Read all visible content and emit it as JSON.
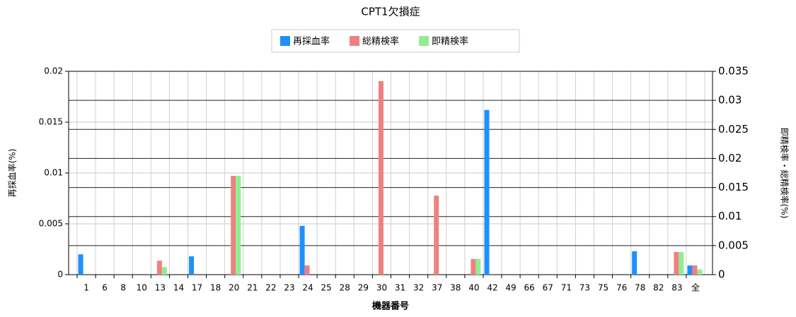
{
  "chart_data": {
    "type": "bar",
    "title": "CPT1欠損症",
    "xlabel": "機器番号",
    "ylabel": "再採血率(%)",
    "y2label": "即精検率・総精検率(%)",
    "categories": [
      "1",
      "6",
      "8",
      "10",
      "13",
      "14",
      "17",
      "18",
      "20",
      "21",
      "22",
      "23",
      "24",
      "25",
      "28",
      "29",
      "30",
      "31",
      "32",
      "37",
      "38",
      "40",
      "42",
      "49",
      "66",
      "67",
      "71",
      "73",
      "75",
      "76",
      "78",
      "82",
      "83",
      "全"
    ],
    "series": [
      {
        "name": "再採血率",
        "color": "#1e90ff",
        "axis": "y",
        "values": [
          0.002,
          0,
          0,
          0,
          0,
          0,
          0.0018,
          0,
          0,
          0,
          0,
          0,
          0.0048,
          0,
          0,
          0,
          0,
          0,
          0,
          0,
          0,
          0,
          0.0162,
          0,
          0,
          0,
          0,
          0,
          0,
          0,
          0.0023,
          0,
          0,
          0.0009
        ]
      },
      {
        "name": "総精検率",
        "color": "#f08080",
        "axis": "y2",
        "values": [
          0,
          0,
          0,
          0,
          0.0024,
          0,
          0,
          0,
          0.017,
          0,
          0,
          0,
          0.0016,
          0,
          0,
          0,
          0.0333,
          0,
          0,
          0.0136,
          0,
          0.0027,
          0,
          0,
          0,
          0,
          0,
          0,
          0,
          0,
          0,
          0,
          0.0039,
          0.0016
        ]
      },
      {
        "name": "即精検率",
        "color": "#90ee90",
        "axis": "y2",
        "values": [
          0,
          0,
          0,
          0,
          0.0013,
          0,
          0,
          0,
          0.017,
          0,
          0,
          0,
          0,
          0,
          0,
          0,
          0,
          0,
          0,
          0,
          0,
          0.0027,
          0,
          0,
          0,
          0,
          0,
          0,
          0,
          0,
          0,
          0,
          0.0039,
          0.0009
        ]
      }
    ],
    "ylim": [
      0,
      0.02
    ],
    "yticks": [
      0,
      0.005,
      0.01,
      0.015,
      0.02
    ],
    "y2lim": [
      0,
      0.035
    ],
    "y2ticks": [
      0,
      0.005,
      0.01,
      0.015,
      0.02,
      0.025,
      0.03,
      0.035
    ],
    "grid": true
  }
}
